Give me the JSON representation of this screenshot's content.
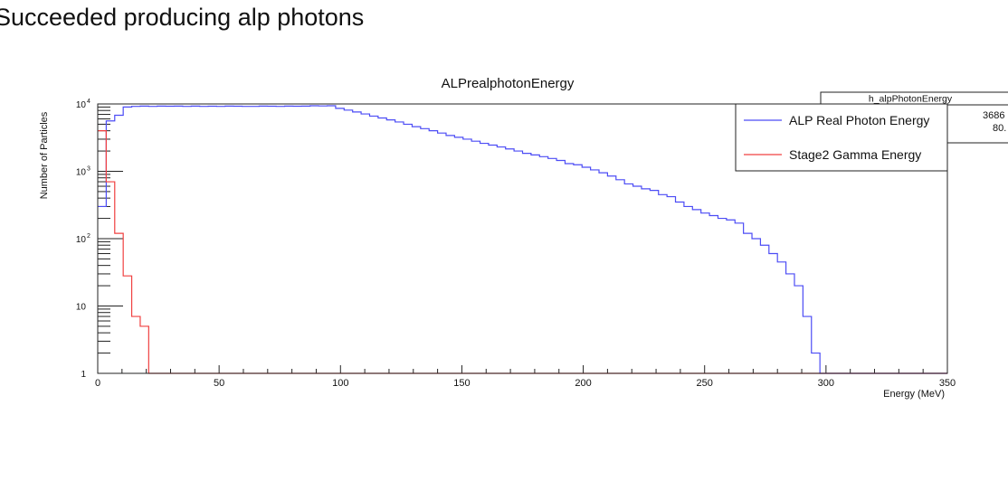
{
  "heading": "Succeeded producing alp photons",
  "stats_box": {
    "title": "h_alpPhotonEnergy",
    "line1": "3686",
    "line2": "80."
  },
  "chart_data": {
    "type": "line",
    "title": "ALPrealphotonEnergy",
    "xlabel": "Energy (MeV)",
    "ylabel": "Number of Particles",
    "xlim": [
      0,
      350
    ],
    "ylim": [
      1,
      10000
    ],
    "yscale": "log",
    "x_ticks": [
      0,
      50,
      100,
      150,
      200,
      250,
      300,
      350
    ],
    "y_ticks": [
      {
        "value": 1,
        "label": "1"
      },
      {
        "value": 10,
        "label": "10"
      },
      {
        "value": 100,
        "label": "10^2"
      },
      {
        "value": 1000,
        "label": "10^3"
      },
      {
        "value": 10000,
        "label": "10^4"
      }
    ],
    "legend_position": "top-right",
    "bin_width": 3.5,
    "series": [
      {
        "name": "ALP Real Photon Energy",
        "color": "#4c4cf5",
        "values": [
          300,
          5600,
          6800,
          9000,
          9200,
          9300,
          9200,
          9300,
          9250,
          9300,
          9200,
          9300,
          9200,
          9250,
          9200,
          9300,
          9250,
          9200,
          9200,
          9300,
          9250,
          9200,
          9300,
          9250,
          9300,
          9400,
          9350,
          9400,
          8600,
          8100,
          7600,
          7100,
          6600,
          6200,
          5800,
          5400,
          5000,
          4600,
          4300,
          4000,
          3700,
          3400,
          3200,
          3000,
          2800,
          2600,
          2450,
          2300,
          2150,
          2000,
          1850,
          1750,
          1650,
          1550,
          1450,
          1300,
          1250,
          1150,
          1050,
          950,
          850,
          750,
          650,
          600,
          550,
          520,
          450,
          420,
          350,
          300,
          270,
          240,
          220,
          200,
          190,
          170,
          120,
          100,
          80,
          60,
          45,
          30,
          20,
          7,
          2,
          1,
          1,
          1,
          1,
          1,
          1,
          1,
          1,
          1,
          1,
          1,
          1,
          1,
          1,
          1
        ]
      },
      {
        "name": "Stage2 Gamma Energy",
        "color": "#f04040",
        "values": [
          4000,
          700,
          120,
          28,
          7,
          5,
          1,
          1,
          1,
          1,
          1,
          1,
          1,
          1,
          1,
          1,
          1,
          1,
          1,
          1,
          1,
          1,
          1,
          1,
          1,
          1,
          1,
          1,
          1,
          1,
          1,
          1,
          1,
          1,
          1,
          1,
          1,
          1,
          1,
          1,
          1,
          1,
          1,
          1,
          1,
          1,
          1,
          1,
          1,
          1,
          1,
          1,
          1,
          1,
          1,
          1,
          1,
          1,
          1,
          1,
          1,
          1,
          1,
          1,
          1,
          1,
          1,
          1,
          1,
          1,
          1,
          1,
          1,
          1,
          1,
          1,
          1,
          1,
          1,
          1,
          1,
          1,
          1,
          1,
          1,
          1,
          1,
          1,
          1,
          1,
          1,
          1,
          1,
          1,
          1,
          1,
          1,
          1,
          1,
          1
        ]
      }
    ]
  }
}
